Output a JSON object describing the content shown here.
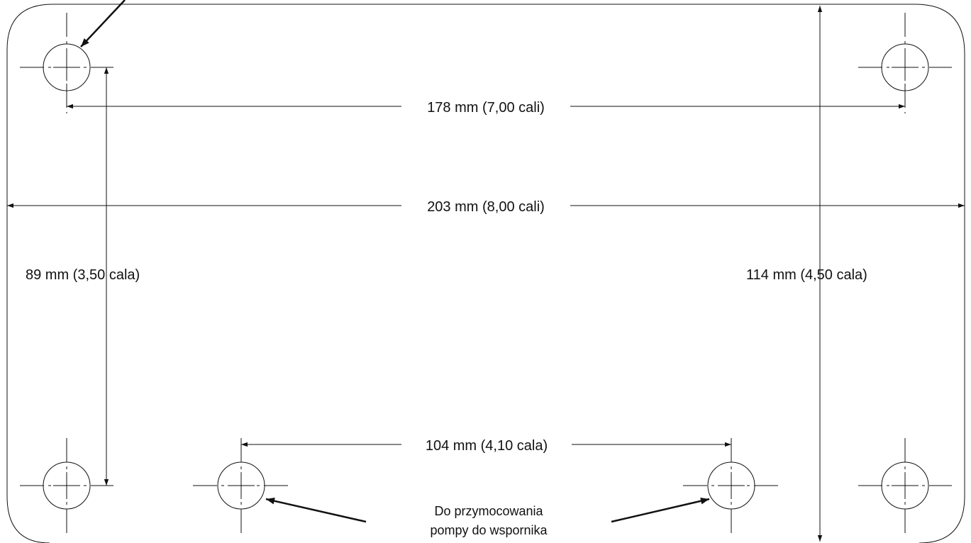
{
  "dimensions": {
    "top_holes": "178 mm (7,00 cali)",
    "overall_width": "203 mm (8,00 cali)",
    "left_height": "89 mm (3,50 cala)",
    "right_height": "114 mm (4,50 cala)",
    "bottom_holes": "104 mm (4,10 cala)"
  },
  "note": {
    "line1": "Do przymocowania",
    "line2": "pompy do wspornika"
  },
  "colors": {
    "ink": "#111111",
    "background": "#ffffff"
  }
}
